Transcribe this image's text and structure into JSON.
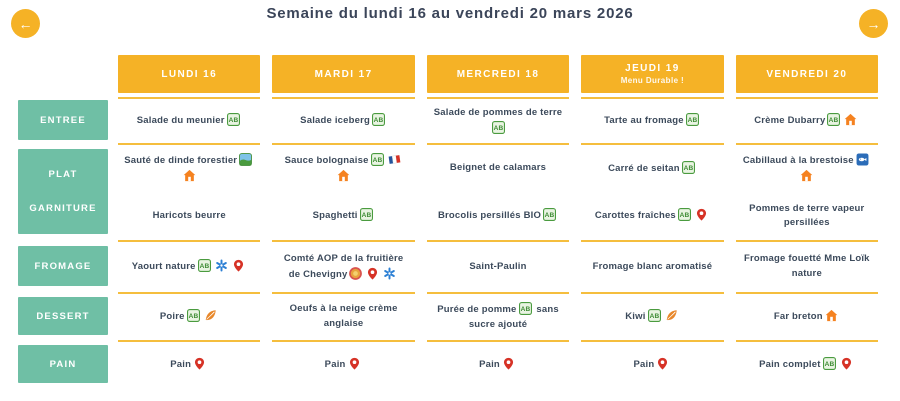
{
  "page": {
    "title": "Semaine du lundi 16 au vendredi 20 mars 2026"
  },
  "nav": {
    "prev": "←",
    "next": "→"
  },
  "row_headers": [
    "ENTREE",
    "PLAT",
    "GARNITURE",
    "FROMAGE",
    "DESSERT",
    "PAIN"
  ],
  "colors": {
    "accent_yellow": "#f5b226",
    "line_yellow": "#f5be3e",
    "teal": "#6fbfa5",
    "text_dark": "#3c4a5b",
    "bio_green": "#4a9b3f",
    "house_orange": "#f58220",
    "pin_red": "#d63226",
    "msc_blue": "#2b6cb8",
    "bbc_blue": "#2b7fd4",
    "aop_orange": "#e8a33d",
    "season_orange": "#e8872a"
  },
  "icons": {
    "bio": "agriculture-biologique",
    "maison": "fait-maison",
    "local": "produit-local",
    "msc": "peche-durable-msc",
    "hve": "certification-environnementale",
    "france": "origine-france",
    "aop": "aop",
    "bbc": "bleu-blanc-coeur",
    "season": "produit-de-saison"
  },
  "days": [
    {
      "label": "LUNDI 16",
      "subtitle": "",
      "cells": [
        {
          "text": "Salade du meunier",
          "icons": [
            "bio"
          ]
        },
        {
          "text": "Sauté de dinde forestier",
          "icons": [
            "hve",
            "maison"
          ]
        },
        {
          "text": "Haricots beurre",
          "icons": []
        },
        {
          "text": "Yaourt nature",
          "icons": [
            "bio",
            "bbc",
            "local"
          ]
        },
        {
          "text": "Poire",
          "icons": [
            "bio",
            "season"
          ]
        },
        {
          "text": "Pain",
          "icons": [
            "local"
          ]
        }
      ]
    },
    {
      "label": "MARDI 17",
      "subtitle": "",
      "cells": [
        {
          "text": "Salade iceberg",
          "icons": [
            "bio"
          ]
        },
        {
          "text": "Sauce bolognaise",
          "icons": [
            "bio",
            "france",
            "maison"
          ]
        },
        {
          "text": "Spaghetti",
          "icons": [
            "bio"
          ]
        },
        {
          "text": "Comté AOP de la fruitière de Chevigny",
          "icons": [
            "aop",
            "local",
            "bbc"
          ]
        },
        {
          "text": "Oeufs à la neige crème anglaise",
          "icons": []
        },
        {
          "text": "Pain",
          "icons": [
            "local"
          ]
        }
      ]
    },
    {
      "label": "MERCREDI 18",
      "subtitle": "",
      "cells": [
        {
          "text": "Salade de pommes de terre",
          "icons": [
            "bio"
          ]
        },
        {
          "text": "Beignet de calamars",
          "icons": []
        },
        {
          "text": "Brocolis persillés BIO",
          "icons": [
            "bio"
          ]
        },
        {
          "text": "Saint-Paulin",
          "icons": []
        },
        {
          "text": "Purée de pomme",
          "icons": [
            "bio"
          ],
          "text_after": "sans sucre ajouté"
        },
        {
          "text": "Pain",
          "icons": [
            "local"
          ]
        }
      ]
    },
    {
      "label": "JEUDI 19",
      "subtitle": "Menu Durable !",
      "cells": [
        {
          "text": "Tarte au fromage",
          "icons": [
            "bio"
          ]
        },
        {
          "text": "Carré de seitan",
          "icons": [
            "bio"
          ]
        },
        {
          "text": "Carottes fraîches",
          "icons": [
            "bio",
            "local"
          ]
        },
        {
          "text": "Fromage blanc aromatisé",
          "icons": []
        },
        {
          "text": "Kiwi",
          "icons": [
            "bio",
            "season"
          ]
        },
        {
          "text": "Pain",
          "icons": [
            "local"
          ]
        }
      ]
    },
    {
      "label": "VENDREDI 20",
      "subtitle": "",
      "cells": [
        {
          "text": "Crème Dubarry",
          "icons": [
            "bio",
            "maison"
          ]
        },
        {
          "text": "Cabillaud à la brestoise",
          "icons": [
            "msc",
            "maison"
          ]
        },
        {
          "text": "Pommes de terre vapeur persillées",
          "icons": []
        },
        {
          "text": "Fromage fouetté Mme Loïk nature",
          "icons": []
        },
        {
          "text": "Far breton",
          "icons": [
            "maison"
          ]
        },
        {
          "text": "Pain complet",
          "icons": [
            "bio",
            "local"
          ]
        }
      ]
    }
  ]
}
